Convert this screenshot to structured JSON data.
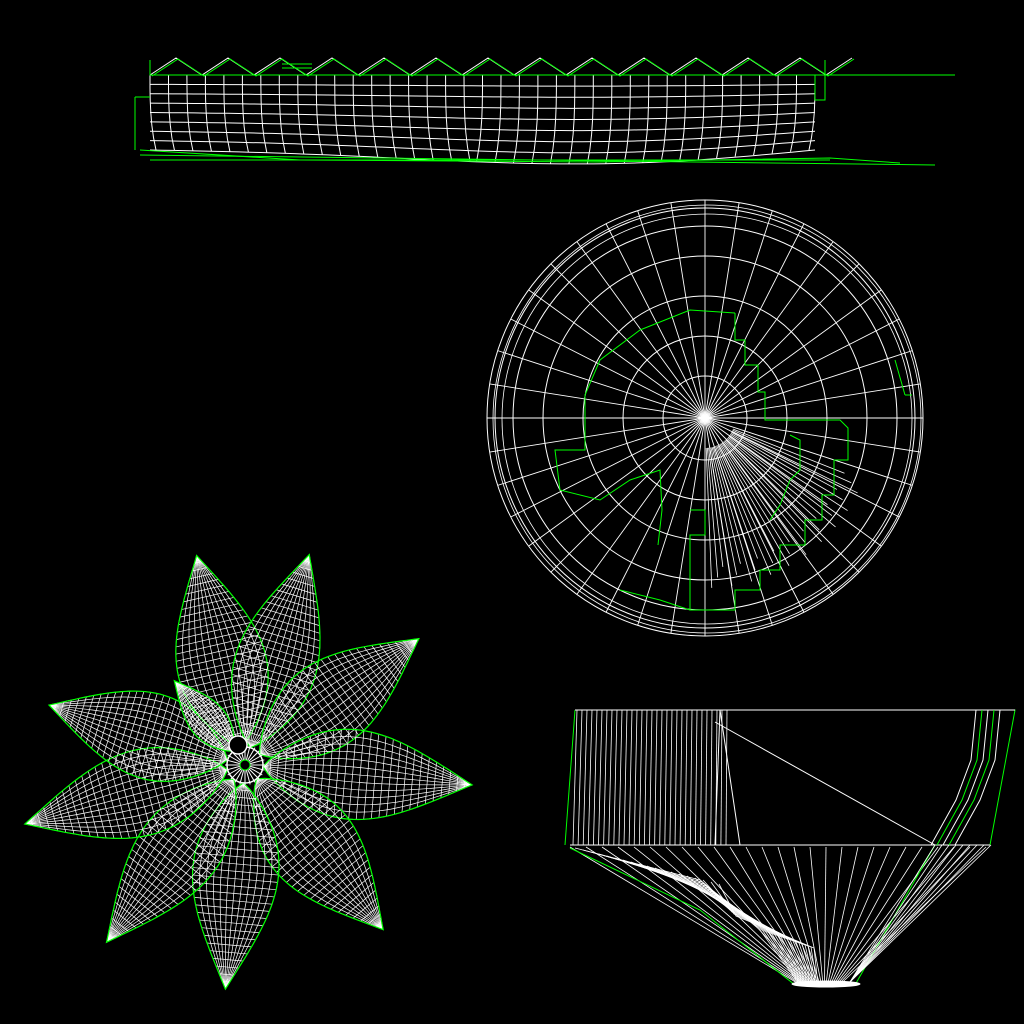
{
  "colors": {
    "background": "#000000",
    "mesh": "#ffffff",
    "outline": "#00ff00"
  },
  "views": [
    {
      "id": "side-view",
      "projection": "side elevation"
    },
    {
      "id": "top-view",
      "projection": "plan"
    },
    {
      "id": "flower-view",
      "projection": "plan",
      "petal_count": 10
    },
    {
      "id": "section-view",
      "projection": "section"
    }
  ]
}
